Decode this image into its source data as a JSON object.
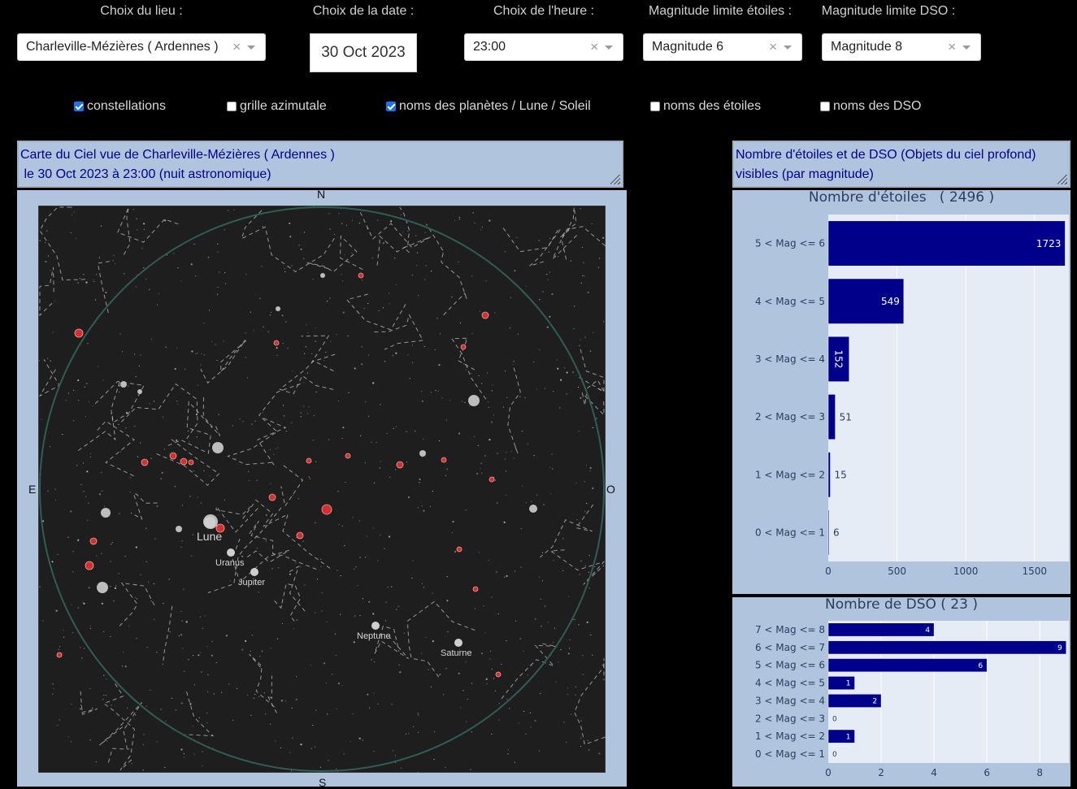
{
  "controls": {
    "lieu": {
      "label": "Choix du lieu :",
      "value": "Charleville-Mézières ( Ardennes )"
    },
    "date": {
      "label": "Choix de la date :",
      "value": "30 Oct 2023"
    },
    "heure": {
      "label": "Choix de l'heure :",
      "value": "23:00"
    },
    "mag_etoiles": {
      "label": "Magnitude limite étoiles :",
      "value": "Magnitude 6"
    },
    "mag_dso": {
      "label": "Magnitude limite DSO :",
      "value": "Magnitude 8"
    },
    "clear_symbol": "×"
  },
  "checkboxes": [
    {
      "label": "constellations",
      "checked": true
    },
    {
      "label": "grille azimutale",
      "checked": false
    },
    {
      "label": "noms des planètes / Lune / Soleil",
      "checked": true
    },
    {
      "label": "noms des étoiles",
      "checked": false
    },
    {
      "label": "noms des DSO",
      "checked": false
    }
  ],
  "map_caption": {
    "line1": "Carte du Ciel vue de Charleville-Mézières ( Ardennes )",
    "line2": " le 30 Oct 2023 à 23:00 (nuit astronomique)"
  },
  "stats_caption": {
    "line1": "Nombre d'étoiles et de DSO (Objets du ciel profond)",
    "line2": "visibles (par magnitude)"
  },
  "sky_map": {
    "cardinals": {
      "n": "N",
      "s": "S",
      "e": "E",
      "o": "O"
    },
    "bodies": [
      {
        "name": "Lune",
        "size": "large"
      },
      {
        "name": "Uranus",
        "size": "small"
      },
      {
        "name": "Jupiter",
        "size": "small"
      },
      {
        "name": "Neptune",
        "size": "small"
      },
      {
        "name": "Saturne",
        "size": "small"
      }
    ],
    "colors": {
      "sky": "#1e1e1e",
      "horizon": "#2f5d55",
      "dso": "#d32f2f",
      "star": "#cfcfcf",
      "lines": "#bfbfbf"
    }
  },
  "chart_data": [
    {
      "type": "bar",
      "orientation": "horizontal",
      "title": "Nombre d'étoiles   ( 2496 )",
      "categories": [
        "5 < Mag <= 6",
        "4 < Mag <= 5",
        "3 < Mag <= 4",
        "2 < Mag <= 3",
        "1 < Mag <= 2",
        "0 < Mag <= 1"
      ],
      "values": [
        1723,
        549,
        152,
        51,
        15,
        6
      ],
      "xlim": [
        0,
        1750
      ],
      "xticks": [
        0,
        500,
        1000,
        1500
      ],
      "grid": true,
      "bar_color": "#00008b"
    },
    {
      "type": "bar",
      "orientation": "horizontal",
      "title": "Nombre de DSO ( 23 )",
      "categories": [
        "7 < Mag <= 8",
        "6 < Mag <= 7",
        "5 < Mag <= 6",
        "4 < Mag <= 5",
        "3 < Mag <= 4",
        "2 < Mag <= 3",
        "1 < Mag <= 2",
        "0 < Mag <= 1"
      ],
      "values": [
        4,
        9,
        6,
        1,
        2,
        0,
        1,
        0
      ],
      "xlim": [
        0,
        9.1
      ],
      "xticks": [
        0,
        2,
        4,
        6,
        8
      ],
      "grid": true,
      "bar_color": "#00008b"
    }
  ]
}
